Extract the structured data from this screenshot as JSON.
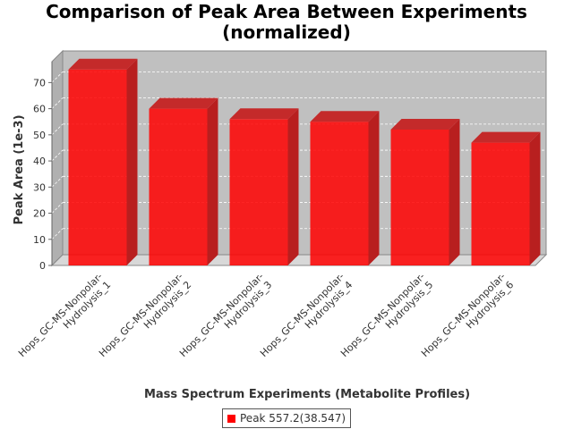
{
  "chart_data": {
    "type": "bar",
    "title_line1": "Comparison of Peak Area Between Experiments",
    "title_line2": "(normalized)",
    "xlabel": "Mass Spectrum Experiments (Metabolite Profiles)",
    "ylabel": "Peak Area (1e-3)",
    "ylim": [
      0,
      78
    ],
    "yticks": [
      0,
      10,
      20,
      30,
      40,
      50,
      60,
      70
    ],
    "categories": [
      [
        "Hops_GC-MS-Nonpolar-",
        "Hydrolysis_1"
      ],
      [
        "Hops_GC-MS-Nonpolar-",
        "Hydrolysis_2"
      ],
      [
        "Hops_GC-MS-Nonpolar-",
        "Hydrolysis_3"
      ],
      [
        "Hops_GC-MS-Nonpolar-",
        "Hydrolysis_4"
      ],
      [
        "Hops_GC-MS-Nonpolar-",
        "Hydrolysis_5"
      ],
      [
        "Hops_GC-MS-Nonpolar-",
        "Hydrolysis_6"
      ]
    ],
    "series": [
      {
        "name": "Peak 557.2(38.547)",
        "values": [
          75,
          60,
          56,
          55,
          52,
          47
        ],
        "color": "#ff0000"
      }
    ],
    "grid": true,
    "legend_position": "bottom-center",
    "plot_background": "#c0c0c0"
  }
}
